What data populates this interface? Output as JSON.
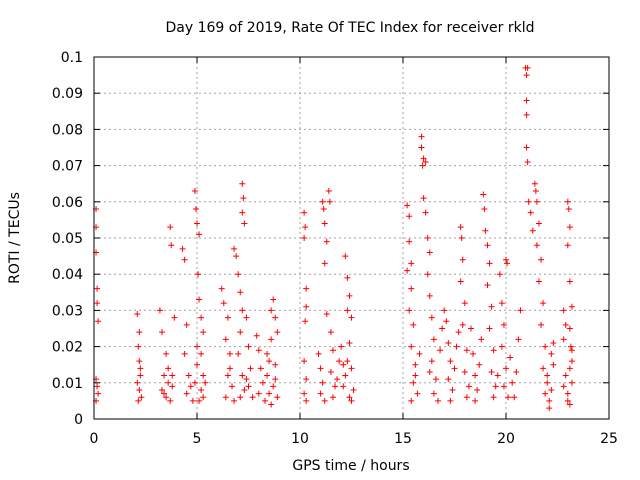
{
  "chart_data": {
    "type": "scatter",
    "title": "Day 169 of 2019, Rate Of TEC Index for receiver rkld",
    "xlabel": "GPS time / hours",
    "ylabel": "ROTI / TECUs",
    "xlim": [
      0,
      25
    ],
    "ylim": [
      0,
      0.1
    ],
    "xticks": [
      0,
      5,
      10,
      15,
      20,
      25
    ],
    "xtick_labels": [
      "0",
      "5",
      "10",
      "15",
      "20",
      "25"
    ],
    "yticks": [
      0,
      0.01,
      0.02,
      0.03,
      0.04,
      0.05,
      0.06,
      0.07,
      0.08,
      0.09,
      0.1
    ],
    "ytick_labels": [
      "0",
      "0.01",
      "0.02",
      "0.03",
      "0.04",
      "0.05",
      "0.06",
      "0.07",
      "0.08",
      "0.09",
      "0.1"
    ],
    "grid": true,
    "marker": "+",
    "color": "#ff0000",
    "series": [
      {
        "name": "ROTI",
        "points": [
          [
            0.1,
            0.058
          ],
          [
            0.1,
            0.053
          ],
          [
            0.1,
            0.046
          ],
          [
            0.15,
            0.036
          ],
          [
            0.15,
            0.032
          ],
          [
            0.2,
            0.027
          ],
          [
            0.1,
            0.011
          ],
          [
            0.15,
            0.009
          ],
          [
            0.2,
            0.007
          ],
          [
            0.1,
            0.005
          ],
          [
            2.1,
            0.029
          ],
          [
            2.2,
            0.024
          ],
          [
            2.15,
            0.02
          ],
          [
            2.2,
            0.016
          ],
          [
            2.25,
            0.012
          ],
          [
            2.1,
            0.01
          ],
          [
            2.2,
            0.008
          ],
          [
            2.3,
            0.006
          ],
          [
            2.15,
            0.005
          ],
          [
            2.25,
            0.014
          ],
          [
            3.2,
            0.03
          ],
          [
            3.3,
            0.024
          ],
          [
            3.5,
            0.018
          ],
          [
            3.4,
            0.012
          ],
          [
            3.6,
            0.01
          ],
          [
            3.3,
            0.008
          ],
          [
            3.5,
            0.006
          ],
          [
            3.7,
            0.005
          ],
          [
            3.8,
            0.009
          ],
          [
            3.9,
            0.028
          ],
          [
            3.7,
            0.053
          ],
          [
            3.75,
            0.048
          ],
          [
            3.6,
            0.014
          ],
          [
            3.4,
            0.007
          ],
          [
            3.8,
            0.012
          ],
          [
            4.3,
            0.047
          ],
          [
            4.4,
            0.044
          ],
          [
            4.5,
            0.026
          ],
          [
            4.4,
            0.018
          ],
          [
            4.6,
            0.012
          ],
          [
            4.7,
            0.009
          ],
          [
            4.5,
            0.007
          ],
          [
            4.8,
            0.005
          ],
          [
            4.9,
            0.01
          ],
          [
            5.0,
            0.015
          ],
          [
            4.9,
            0.063
          ],
          [
            4.95,
            0.058
          ],
          [
            5.0,
            0.054
          ],
          [
            5.1,
            0.051
          ],
          [
            5.05,
            0.04
          ],
          [
            5.1,
            0.033
          ],
          [
            5.2,
            0.028
          ],
          [
            5.3,
            0.024
          ],
          [
            5.2,
            0.018
          ],
          [
            5.3,
            0.012
          ],
          [
            5.2,
            0.008
          ],
          [
            5.3,
            0.006
          ],
          [
            5.1,
            0.005
          ],
          [
            5.4,
            0.01
          ],
          [
            5.0,
            0.02
          ],
          [
            6.2,
            0.036
          ],
          [
            6.3,
            0.032
          ],
          [
            6.5,
            0.028
          ],
          [
            6.4,
            0.022
          ],
          [
            6.6,
            0.018
          ],
          [
            6.5,
            0.012
          ],
          [
            6.7,
            0.009
          ],
          [
            6.4,
            0.006
          ],
          [
            6.8,
            0.005
          ],
          [
            6.6,
            0.014
          ],
          [
            6.8,
            0.047
          ],
          [
            6.9,
            0.045
          ],
          [
            7.0,
            0.04
          ],
          [
            7.1,
            0.035
          ],
          [
            7.2,
            0.03
          ],
          [
            7.1,
            0.024
          ],
          [
            7.0,
            0.018
          ],
          [
            7.2,
            0.012
          ],
          [
            7.3,
            0.008
          ],
          [
            7.1,
            0.006
          ],
          [
            7.2,
            0.065
          ],
          [
            7.25,
            0.061
          ],
          [
            7.2,
            0.057
          ],
          [
            7.3,
            0.054
          ],
          [
            7.4,
            0.028
          ],
          [
            7.5,
            0.02
          ],
          [
            7.6,
            0.014
          ],
          [
            7.5,
            0.009
          ],
          [
            7.7,
            0.006
          ],
          [
            7.4,
            0.011
          ],
          [
            7.9,
            0.023
          ],
          [
            8.0,
            0.019
          ],
          [
            8.1,
            0.014
          ],
          [
            8.2,
            0.01
          ],
          [
            8.0,
            0.007
          ],
          [
            8.3,
            0.005
          ],
          [
            8.4,
            0.012
          ],
          [
            8.5,
            0.016
          ],
          [
            8.6,
            0.03
          ],
          [
            8.6,
            0.022
          ],
          [
            8.7,
            0.033
          ],
          [
            8.8,
            0.028
          ],
          [
            8.9,
            0.024
          ],
          [
            8.8,
            0.015
          ],
          [
            8.7,
            0.009
          ],
          [
            8.9,
            0.006
          ],
          [
            8.6,
            0.004
          ],
          [
            8.5,
            0.007
          ],
          [
            8.8,
            0.011
          ],
          [
            8.4,
            0.018
          ],
          [
            10.2,
            0.057
          ],
          [
            10.25,
            0.053
          ],
          [
            10.2,
            0.05
          ],
          [
            10.3,
            0.036
          ],
          [
            10.3,
            0.031
          ],
          [
            10.25,
            0.027
          ],
          [
            10.2,
            0.016
          ],
          [
            10.3,
            0.011
          ],
          [
            10.2,
            0.007
          ],
          [
            10.3,
            0.005
          ],
          [
            10.9,
            0.018
          ],
          [
            11.0,
            0.014
          ],
          [
            11.1,
            0.01
          ],
          [
            11.0,
            0.007
          ],
          [
            11.2,
            0.005
          ],
          [
            11.1,
            0.06
          ],
          [
            11.15,
            0.058
          ],
          [
            11.2,
            0.054
          ],
          [
            11.3,
            0.049
          ],
          [
            11.2,
            0.043
          ],
          [
            11.4,
            0.063
          ],
          [
            11.45,
            0.06
          ],
          [
            11.3,
            0.029
          ],
          [
            11.5,
            0.024
          ],
          [
            11.6,
            0.019
          ],
          [
            11.5,
            0.013
          ],
          [
            11.7,
            0.009
          ],
          [
            11.6,
            0.006
          ],
          [
            11.8,
            0.011
          ],
          [
            11.9,
            0.016
          ],
          [
            12.0,
            0.02
          ],
          [
            12.1,
            0.015
          ],
          [
            12.2,
            0.012
          ],
          [
            12.3,
            0.03
          ],
          [
            12.4,
            0.034
          ],
          [
            12.5,
            0.028
          ],
          [
            12.4,
            0.021
          ],
          [
            12.5,
            0.014
          ],
          [
            12.6,
            0.008
          ],
          [
            12.5,
            0.005
          ],
          [
            12.2,
            0.045
          ],
          [
            12.3,
            0.039
          ],
          [
            12.1,
            0.009
          ],
          [
            12.4,
            0.006
          ],
          [
            12.3,
            0.016
          ],
          [
            15.2,
            0.059
          ],
          [
            15.3,
            0.056
          ],
          [
            15.3,
            0.049
          ],
          [
            15.4,
            0.043
          ],
          [
            15.2,
            0.041
          ],
          [
            15.4,
            0.036
          ],
          [
            15.3,
            0.03
          ],
          [
            15.5,
            0.026
          ],
          [
            15.4,
            0.02
          ],
          [
            15.6,
            0.015
          ],
          [
            15.5,
            0.01
          ],
          [
            15.7,
            0.007
          ],
          [
            15.4,
            0.005
          ],
          [
            15.6,
            0.012
          ],
          [
            15.8,
            0.018
          ],
          [
            15.9,
            0.078
          ],
          [
            15.9,
            0.075
          ],
          [
            16.0,
            0.072
          ],
          [
            15.95,
            0.07
          ],
          [
            16.1,
            0.071
          ],
          [
            16.0,
            0.061
          ],
          [
            16.1,
            0.057
          ],
          [
            16.2,
            0.05
          ],
          [
            16.3,
            0.046
          ],
          [
            16.2,
            0.04
          ],
          [
            16.3,
            0.034
          ],
          [
            16.4,
            0.028
          ],
          [
            16.5,
            0.022
          ],
          [
            16.4,
            0.016
          ],
          [
            16.6,
            0.011
          ],
          [
            16.5,
            0.007
          ],
          [
            16.7,
            0.005
          ],
          [
            16.3,
            0.013
          ],
          [
            16.8,
            0.019
          ],
          [
            16.9,
            0.025
          ],
          [
            17.0,
            0.03
          ],
          [
            17.1,
            0.027
          ],
          [
            17.2,
            0.021
          ],
          [
            17.3,
            0.016
          ],
          [
            17.2,
            0.011
          ],
          [
            17.4,
            0.008
          ],
          [
            17.3,
            0.005
          ],
          [
            17.5,
            0.014
          ],
          [
            17.6,
            0.02
          ],
          [
            17.7,
            0.024
          ],
          [
            17.8,
            0.053
          ],
          [
            17.85,
            0.05
          ],
          [
            17.9,
            0.044
          ],
          [
            17.8,
            0.038
          ],
          [
            18.0,
            0.032
          ],
          [
            17.9,
            0.026
          ],
          [
            18.1,
            0.019
          ],
          [
            18.0,
            0.013
          ],
          [
            18.2,
            0.009
          ],
          [
            18.1,
            0.006
          ],
          [
            18.3,
            0.025
          ],
          [
            18.4,
            0.018
          ],
          [
            18.5,
            0.012
          ],
          [
            18.6,
            0.008
          ],
          [
            18.5,
            0.005
          ],
          [
            18.7,
            0.015
          ],
          [
            18.8,
            0.022
          ],
          [
            18.9,
            0.062
          ],
          [
            18.95,
            0.058
          ],
          [
            19.0,
            0.052
          ],
          [
            19.1,
            0.048
          ],
          [
            19.2,
            0.043
          ],
          [
            19.1,
            0.037
          ],
          [
            19.3,
            0.031
          ],
          [
            19.2,
            0.025
          ],
          [
            19.4,
            0.019
          ],
          [
            19.3,
            0.013
          ],
          [
            19.5,
            0.009
          ],
          [
            19.4,
            0.006
          ],
          [
            19.6,
            0.012
          ],
          [
            19.7,
            0.04
          ],
          [
            19.8,
            0.032
          ],
          [
            19.9,
            0.026
          ],
          [
            19.8,
            0.02
          ],
          [
            20.0,
            0.014
          ],
          [
            19.9,
            0.009
          ],
          [
            20.1,
            0.006
          ],
          [
            20.0,
            0.044
          ],
          [
            20.05,
            0.043
          ],
          [
            20.2,
            0.017
          ],
          [
            20.3,
            0.01
          ],
          [
            20.4,
            0.006
          ],
          [
            20.5,
            0.013
          ],
          [
            20.6,
            0.022
          ],
          [
            20.7,
            0.03
          ],
          [
            20.95,
            0.097
          ],
          [
            21.05,
            0.097
          ],
          [
            21.0,
            0.095
          ],
          [
            21.0,
            0.088
          ],
          [
            21.0,
            0.084
          ],
          [
            21.0,
            0.075
          ],
          [
            21.05,
            0.071
          ],
          [
            21.1,
            0.06
          ],
          [
            21.2,
            0.057
          ],
          [
            21.3,
            0.052
          ],
          [
            21.4,
            0.065
          ],
          [
            21.45,
            0.063
          ],
          [
            21.5,
            0.06
          ],
          [
            21.6,
            0.054
          ],
          [
            21.5,
            0.048
          ],
          [
            21.7,
            0.044
          ],
          [
            21.6,
            0.038
          ],
          [
            21.8,
            0.032
          ],
          [
            21.7,
            0.026
          ],
          [
            21.9,
            0.02
          ],
          [
            21.8,
            0.014
          ],
          [
            22.0,
            0.01
          ],
          [
            21.9,
            0.007
          ],
          [
            22.1,
            0.005
          ],
          [
            22.0,
            0.012
          ],
          [
            22.2,
            0.018
          ],
          [
            22.1,
            0.003
          ],
          [
            22.2,
            0.008
          ],
          [
            22.3,
            0.015
          ],
          [
            22.3,
            0.021
          ],
          [
            22.8,
            0.03
          ],
          [
            22.9,
            0.026
          ],
          [
            22.8,
            0.022
          ],
          [
            23.0,
            0.06
          ],
          [
            23.05,
            0.058
          ],
          [
            23.1,
            0.053
          ],
          [
            23.0,
            0.048
          ],
          [
            23.1,
            0.038
          ],
          [
            23.2,
            0.031
          ],
          [
            23.1,
            0.025
          ],
          [
            23.2,
            0.019
          ],
          [
            23.1,
            0.014
          ],
          [
            23.2,
            0.01
          ],
          [
            23.0,
            0.007
          ],
          [
            23.1,
            0.004
          ],
          [
            22.9,
            0.012
          ],
          [
            23.2,
            0.016
          ],
          [
            22.8,
            0.009
          ],
          [
            23.0,
            0.005
          ],
          [
            23.15,
            0.02
          ]
        ]
      }
    ]
  }
}
